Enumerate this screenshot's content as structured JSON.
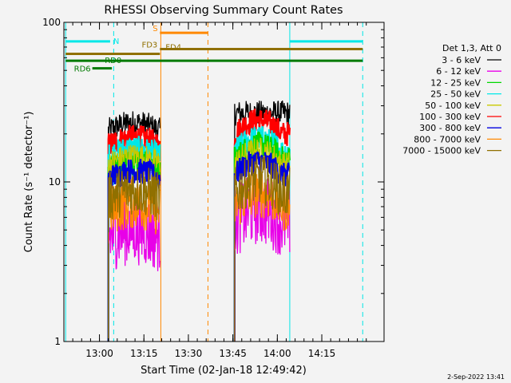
{
  "chart_data": {
    "type": "line",
    "title": "RHESSI Observing Summary Count Rates",
    "xlabel": "Start Time (02-Jan-18 12:49:42)",
    "ylabel": "Count Rate (s⁻¹ detector⁻¹)",
    "yscale": "log",
    "ylim": [
      1,
      100
    ],
    "xlim_minutes": [
      12.8,
      14.6
    ],
    "x_ticks": [
      {
        "label": "13:00",
        "t": 13.0
      },
      {
        "label": "13:15",
        "t": 13.25
      },
      {
        "label": "13:30",
        "t": 13.5
      },
      {
        "label": "13:45",
        "t": 13.75
      },
      {
        "label": "14:00",
        "t": 14.0
      },
      {
        "label": "14:15",
        "t": 14.25
      }
    ],
    "y_ticks": [
      {
        "label": "1",
        "v": 1
      },
      {
        "label": "10",
        "v": 10
      },
      {
        "label": "100",
        "v": 100
      }
    ],
    "legend_title": "Det 1,3, Att 0",
    "legend_position": "right",
    "series": [
      {
        "name": "3 - 6 keV",
        "color": "#000000",
        "seg1": 21,
        "seg2": 27
      },
      {
        "name": "6 - 12 keV",
        "color": "#e800e8",
        "seg1": 4.5,
        "seg2": 5.5
      },
      {
        "name": "12 - 25 keV",
        "color": "#00d800",
        "seg1": 12,
        "seg2": 14
      },
      {
        "name": "25 - 50 keV",
        "color": "#00e8e8",
        "seg1": 14.5,
        "seg2": 15.5
      },
      {
        "name": "50 - 100 keV",
        "color": "#c8c800",
        "seg1": 13,
        "seg2": 13
      },
      {
        "name": "100 - 300 keV",
        "color": "#ff0000",
        "seg1": 17,
        "seg2": 20
      },
      {
        "name": "300 - 800 keV",
        "color": "#0000e0",
        "seg1": 10.5,
        "seg2": 11
      },
      {
        "name": "800 - 7000 keV",
        "color": "#ff8800",
        "seg1": 6.5,
        "seg2": 7
      },
      {
        "name": "7000 - 15000 keV",
        "color": "#907000",
        "seg1": 8,
        "seg2": 8.5
      }
    ],
    "data_segments": [
      {
        "start": 13.05,
        "end": 13.34
      },
      {
        "start": 13.76,
        "end": 14.07
      }
    ],
    "flags": [
      {
        "label": "N",
        "color": "#00e8e8",
        "start": 12.81,
        "end": 13.06,
        "level": 76
      },
      {
        "label": "",
        "color": "#00e8e8",
        "start": 14.07,
        "end": 14.48,
        "level": 76
      },
      {
        "label": "S",
        "color": "#ff8800",
        "start": 13.34,
        "end": 13.61,
        "level": 86
      },
      {
        "label": "FD3",
        "color": "#907000",
        "start": 12.81,
        "end": 13.34,
        "level": 63.5
      },
      {
        "label": "FD4",
        "color": "#907000",
        "start": 13.34,
        "end": 14.48,
        "level": 68
      },
      {
        "label": "RD0",
        "color": "#007a00",
        "start": 12.81,
        "end": 14.48,
        "level": 57.5
      },
      {
        "label": "RD6",
        "color": "#007a00",
        "start": 12.96,
        "end": 13.07,
        "level": 51.5
      }
    ],
    "vlines": [
      {
        "t": 12.81,
        "color": "#00e8e8",
        "style": "solid"
      },
      {
        "t": 13.08,
        "color": "#00e8e8",
        "style": "dashed"
      },
      {
        "t": 13.345,
        "color": "#ff8800",
        "style": "solid"
      },
      {
        "t": 13.61,
        "color": "#ff8800",
        "style": "dashed"
      },
      {
        "t": 14.07,
        "color": "#00e8e8",
        "style": "solid"
      },
      {
        "t": 14.48,
        "color": "#00e8e8",
        "style": "dashed"
      }
    ]
  },
  "footer": {
    "timestamp": "2-Sep-2022 13:41"
  }
}
